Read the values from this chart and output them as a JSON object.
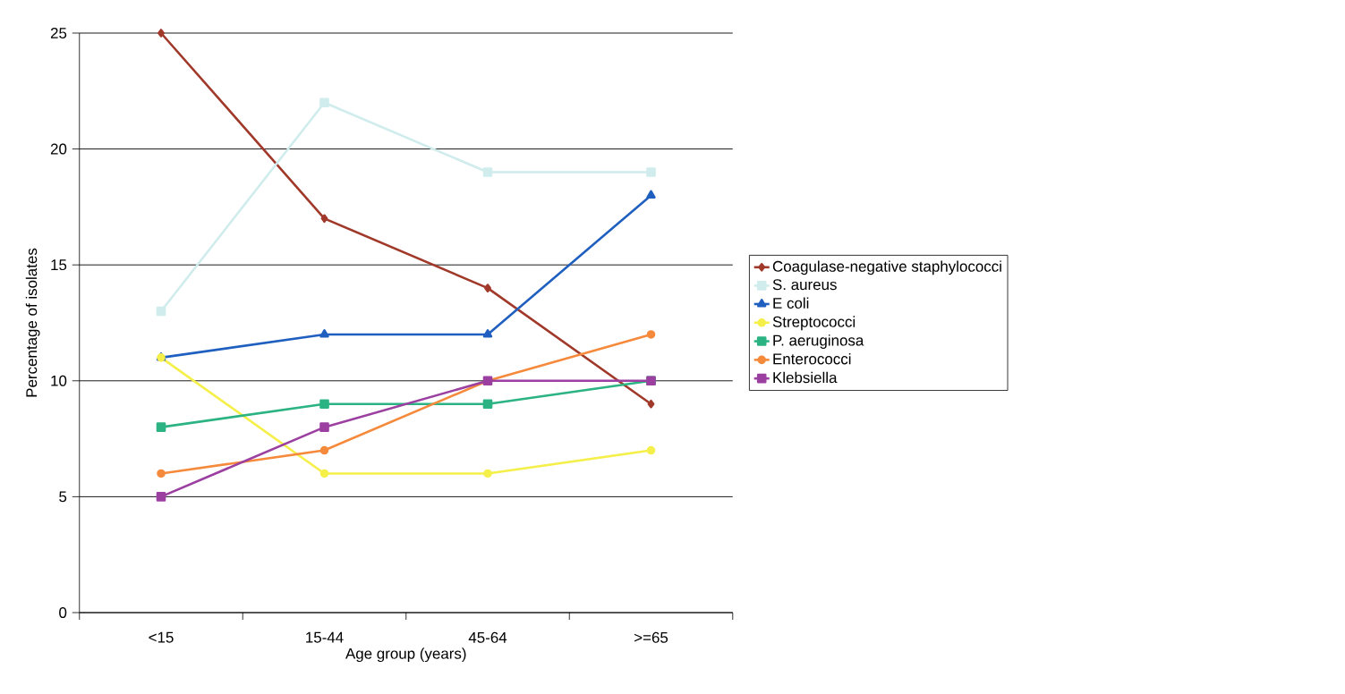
{
  "chart_data": {
    "type": "line",
    "xlabel": "Age group (years)",
    "ylabel": "Percentage of isolates",
    "categories": [
      "<15",
      "15-44",
      "45-64",
      ">=65"
    ],
    "ylim": [
      0,
      25
    ],
    "yticks": [
      0,
      5,
      10,
      15,
      20,
      25
    ],
    "grid": "y",
    "legend": "right",
    "series": [
      {
        "name": "Coagulase-negative staphylococci",
        "color": "#a0392a",
        "marker": "diamond",
        "values": [
          25,
          17,
          14,
          9
        ]
      },
      {
        "name": "S. aureus",
        "color": "#d0ecec",
        "marker": "square",
        "values": [
          13,
          22,
          19,
          19
        ]
      },
      {
        "name": "E coli",
        "color": "#1f5fbf",
        "marker": "triangle",
        "values": [
          11,
          12,
          12,
          18
        ]
      },
      {
        "name": "Streptococci",
        "color": "#f5ef4a",
        "marker": "circle",
        "values": [
          11,
          6,
          6,
          7
        ]
      },
      {
        "name": "P. aeruginosa",
        "color": "#2bb383",
        "marker": "square",
        "values": [
          8,
          9,
          9,
          10
        ]
      },
      {
        "name": "Enterococci",
        "color": "#f58a3c",
        "marker": "circle",
        "values": [
          6,
          7,
          10,
          12
        ]
      },
      {
        "name": "Klebsiella",
        "color": "#9b3fa0",
        "marker": "square",
        "values": [
          5,
          8,
          10,
          10
        ]
      }
    ]
  }
}
